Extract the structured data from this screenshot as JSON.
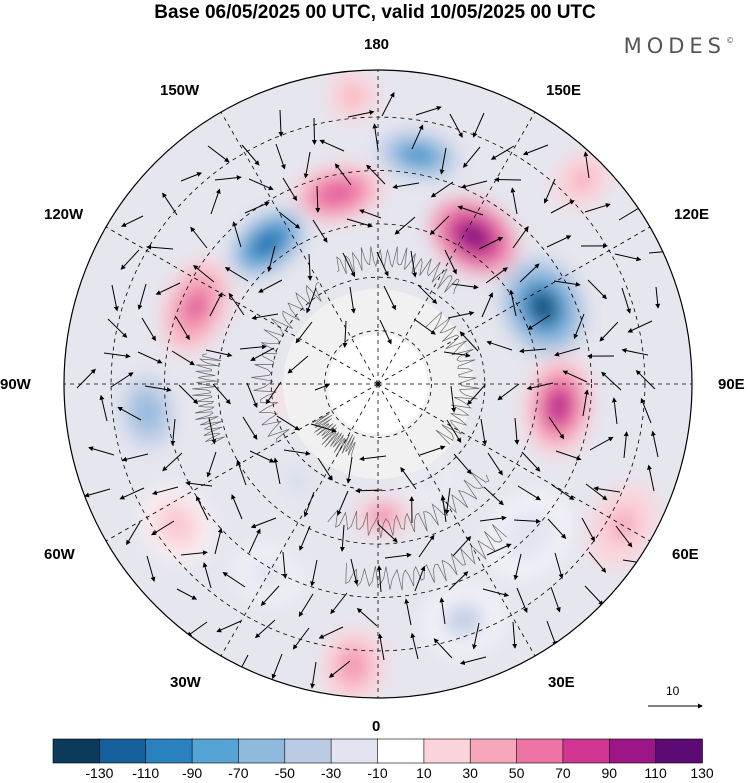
{
  "title": "Base 06/05/2025 00 UTC, valid 10/05/2025 00 UTC",
  "logo": "MODES",
  "logo_mark": "©",
  "longitude_labels": {
    "lon_180": "180",
    "lon_150E": "150E",
    "lon_120E": "120E",
    "lon_90E": "90E",
    "lon_60E": "60E",
    "lon_30E": "30E",
    "lon_0": "0",
    "lon_30W": "30W",
    "lon_60W": "60W",
    "lon_90W": "90W",
    "lon_120W": "120W",
    "lon_150W": "150W"
  },
  "vector_scale": {
    "label": "10"
  },
  "colorbar": {
    "ticks": [
      "-130",
      "-110",
      "-90",
      "-70",
      "-50",
      "-30",
      "-10",
      "10",
      "30",
      "50",
      "70",
      "90",
      "110",
      "130"
    ],
    "colors": [
      "#0c3a5c",
      "#15609a",
      "#2a81c0",
      "#56a4d6",
      "#8fb9dd",
      "#bccbe4",
      "#e3e4f1",
      "#ffffff",
      "#fbd4db",
      "#f6a8ba",
      "#ee74a6",
      "#d03592",
      "#9c1688",
      "#5c0a74"
    ]
  },
  "anomaly_centers": [
    {
      "lon_deg": 147,
      "r": 0.56,
      "value": 135,
      "rx": 0.11,
      "ry": 0.15
    },
    {
      "lon_deg": 115,
      "r": 0.58,
      "value": -140,
      "rx": 0.13,
      "ry": 0.16
    },
    {
      "lon_deg": 83,
      "r": 0.58,
      "value": 100,
      "rx": 0.11,
      "ry": 0.16
    },
    {
      "lon_deg": 170,
      "r": 0.74,
      "value": -100,
      "rx": 0.09,
      "ry": 0.16
    },
    {
      "lon_deg": -168,
      "r": 0.62,
      "value": 80,
      "rx": 0.09,
      "ry": 0.15
    },
    {
      "lon_deg": -142,
      "r": 0.57,
      "value": -115,
      "rx": 0.1,
      "ry": 0.16
    },
    {
      "lon_deg": -113,
      "r": 0.63,
      "value": 75,
      "rx": 0.1,
      "ry": 0.16
    },
    {
      "lon_deg": -83,
      "r": 0.74,
      "value": -70,
      "rx": 0.1,
      "ry": 0.14
    },
    {
      "lon_deg": -55,
      "r": 0.78,
      "value": 35,
      "rx": 0.1,
      "ry": 0.12
    },
    {
      "lon_deg": -30,
      "r": 0.7,
      "value": -30,
      "rx": 0.08,
      "ry": 0.1
    },
    {
      "lon_deg": -5,
      "r": 0.9,
      "value": 60,
      "rx": 0.12,
      "ry": 0.1
    },
    {
      "lon_deg": 2,
      "r": 0.42,
      "value": 65,
      "rx": 0.06,
      "ry": 0.09
    },
    {
      "lon_deg": 20,
      "r": 0.8,
      "value": -40,
      "rx": 0.1,
      "ry": 0.12
    },
    {
      "lon_deg": 45,
      "r": 0.68,
      "value": -30,
      "rx": 0.11,
      "ry": 0.14
    },
    {
      "lon_deg": 60,
      "r": 0.9,
      "value": 40,
      "rx": 0.1,
      "ry": 0.14
    },
    {
      "lon_deg": 28,
      "r": 0.35,
      "value": -35,
      "rx": 0.06,
      "ry": 0.07
    },
    {
      "lon_deg": -40,
      "r": 0.4,
      "value": -45,
      "rx": 0.05,
      "ry": 0.05
    },
    {
      "lon_deg": -80,
      "r": 0.3,
      "value": 25,
      "rx": 0.06,
      "ry": 0.04
    },
    {
      "lon_deg": 135,
      "r": 0.92,
      "value": 40,
      "rx": 0.1,
      "ry": 0.08
    },
    {
      "lon_deg": -175,
      "r": 0.92,
      "value": 40,
      "rx": 0.08,
      "ry": 0.08
    }
  ]
}
